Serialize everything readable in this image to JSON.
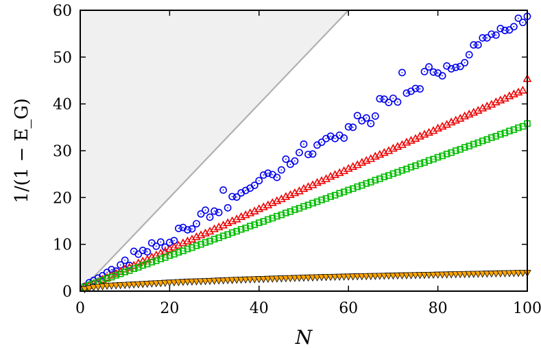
{
  "chart_data": {
    "type": "scatter",
    "xlabel": "N",
    "ylabel": "1/(1 − E_G)",
    "xlim": [
      0,
      100
    ],
    "ylim": [
      0,
      60
    ],
    "xticks": [
      "0",
      "20",
      "40",
      "60",
      "80",
      "100"
    ],
    "yticks": [
      "0",
      "10",
      "20",
      "30",
      "40",
      "50",
      "60"
    ],
    "grid": false,
    "shaded_region": {
      "boundary": "y = x",
      "fill": "#f0f0f0",
      "line_color": "#b0b0b0"
    },
    "series": [
      {
        "marker": "circle-dot",
        "color": "#0000ee",
        "x": [
          1,
          2,
          3,
          4,
          5,
          6,
          7,
          8,
          9,
          10,
          11,
          12,
          13,
          14,
          15,
          16,
          17,
          18,
          19,
          20,
          21,
          22,
          23,
          24,
          25,
          26,
          27,
          28,
          29,
          30,
          31,
          32,
          33,
          34,
          35,
          36,
          37,
          38,
          39,
          40,
          41,
          42,
          43,
          44,
          45,
          46,
          47,
          48,
          49,
          50,
          51,
          52,
          53,
          54,
          55,
          56,
          57,
          58,
          59,
          60,
          61,
          62,
          63,
          64,
          65,
          66,
          67,
          68,
          69,
          70,
          71,
          72,
          73,
          74,
          75,
          76,
          77,
          78,
          79,
          80,
          81,
          82,
          83,
          84,
          85,
          86,
          87,
          88,
          89,
          90,
          91,
          92,
          93,
          94,
          95,
          96,
          97,
          98,
          99,
          100
        ],
        "y": [
          1.0,
          1.8,
          2.3,
          2.8,
          3.3,
          4.0,
          4.6,
          4.3,
          5.6,
          6.6,
          5.5,
          8.5,
          7.9,
          8.7,
          8.4,
          10.3,
          9.6,
          10.5,
          9.4,
          10.4,
          10.8,
          13.4,
          13.6,
          13.1,
          13.3,
          14.4,
          16.5,
          17.3,
          15.8,
          17.1,
          16.8,
          21.6,
          17.8,
          20.2,
          20.1,
          21.0,
          21.5,
          22.0,
          22.6,
          23.6,
          24.8,
          25.2,
          24.9,
          24.3,
          25.9,
          28.2,
          27.1,
          27.8,
          29.6,
          31.4,
          29.2,
          29.3,
          31.2,
          31.8,
          32.6,
          33.1,
          32.6,
          33.3,
          32.7,
          35.1,
          35.0,
          37.5,
          36.4,
          37.0,
          35.8,
          37.4,
          41.1,
          41.0,
          40.3,
          41.2,
          40.4,
          46.7,
          42.3,
          42.7,
          43.3,
          43.2,
          46.9,
          47.9,
          46.8,
          46.6,
          46.0,
          48.1,
          47.5,
          47.8,
          48.0,
          48.8,
          50.5,
          52.6,
          52.6,
          54.1,
          54.1,
          54.9,
          54.7,
          56.1,
          55.7,
          55.8,
          56.5,
          58.3,
          57.4,
          58.7
        ]
      },
      {
        "marker": "triangle-up",
        "color": "#ee0000",
        "x": [
          1,
          2,
          3,
          4,
          5,
          6,
          7,
          8,
          9,
          10,
          11,
          12,
          13,
          14,
          15,
          16,
          17,
          18,
          19,
          20,
          21,
          22,
          23,
          24,
          25,
          26,
          27,
          28,
          29,
          30,
          31,
          32,
          33,
          34,
          35,
          36,
          37,
          38,
          39,
          40,
          41,
          42,
          43,
          44,
          45,
          46,
          47,
          48,
          49,
          50,
          51,
          52,
          53,
          54,
          55,
          56,
          57,
          58,
          59,
          60,
          61,
          62,
          63,
          64,
          65,
          66,
          67,
          68,
          69,
          70,
          71,
          72,
          73,
          74,
          75,
          76,
          77,
          78,
          79,
          80,
          81,
          82,
          83,
          84,
          85,
          86,
          87,
          88,
          89,
          90,
          91,
          92,
          93,
          94,
          95,
          96,
          97,
          98,
          99,
          100
        ],
        "y": [
          0.9,
          1.2,
          1.6,
          2.0,
          2.5,
          2.9,
          3.4,
          3.8,
          4.2,
          4.7,
          5.1,
          5.5,
          6.0,
          6.4,
          6.8,
          7.3,
          7.7,
          8.1,
          8.5,
          9.0,
          9.4,
          9.8,
          10.3,
          10.7,
          11.1,
          11.6,
          12.0,
          12.4,
          12.8,
          13.3,
          13.7,
          14.1,
          14.6,
          15.0,
          15.4,
          15.9,
          16.3,
          16.7,
          17.1,
          17.6,
          18.0,
          18.4,
          18.9,
          19.3,
          19.7,
          20.2,
          20.6,
          21.0,
          21.4,
          21.9,
          22.3,
          22.7,
          23.2,
          23.6,
          24.0,
          24.5,
          24.9,
          25.3,
          25.7,
          26.2,
          26.6,
          27.0,
          27.5,
          27.9,
          28.3,
          28.8,
          29.2,
          29.6,
          30.0,
          30.5,
          30.9,
          31.3,
          31.8,
          32.2,
          32.6,
          33.1,
          33.5,
          33.9,
          34.3,
          34.8,
          35.2,
          35.6,
          36.1,
          36.5,
          36.9,
          37.4,
          37.8,
          38.2,
          38.6,
          39.1,
          39.5,
          39.9,
          40.4,
          40.8,
          41.2,
          41.7,
          42.1,
          42.5,
          42.9,
          45.4
        ]
      },
      {
        "marker": "square-dot",
        "color": "#00bb00",
        "x": [
          1,
          2,
          3,
          4,
          5,
          6,
          7,
          8,
          9,
          10,
          11,
          12,
          13,
          14,
          15,
          16,
          17,
          18,
          19,
          20,
          21,
          22,
          23,
          24,
          25,
          26,
          27,
          28,
          29,
          30,
          31,
          32,
          33,
          34,
          35,
          36,
          37,
          38,
          39,
          40,
          41,
          42,
          43,
          44,
          45,
          46,
          47,
          48,
          49,
          50,
          51,
          52,
          53,
          54,
          55,
          56,
          57,
          58,
          59,
          60,
          61,
          62,
          63,
          64,
          65,
          66,
          67,
          68,
          69,
          70,
          71,
          72,
          73,
          74,
          75,
          76,
          77,
          78,
          79,
          80,
          81,
          82,
          83,
          84,
          85,
          86,
          87,
          88,
          89,
          90,
          91,
          92,
          93,
          94,
          95,
          96,
          97,
          98,
          99,
          100
        ],
        "y": [
          0.9,
          1.3,
          1.6,
          2.0,
          2.3,
          2.7,
          3.0,
          3.4,
          3.7,
          4.1,
          4.4,
          4.8,
          5.1,
          5.5,
          5.8,
          6.2,
          6.5,
          6.9,
          7.2,
          7.6,
          7.9,
          8.3,
          8.6,
          9.0,
          9.3,
          9.7,
          10.0,
          10.4,
          10.7,
          11.1,
          11.4,
          11.8,
          12.1,
          12.5,
          12.8,
          13.2,
          13.5,
          13.9,
          14.2,
          14.6,
          14.9,
          15.3,
          15.6,
          16.0,
          16.3,
          16.7,
          17.0,
          17.4,
          17.7,
          18.1,
          18.4,
          18.8,
          19.1,
          19.5,
          19.8,
          20.2,
          20.5,
          20.9,
          21.2,
          21.6,
          21.9,
          22.3,
          22.6,
          23.0,
          23.3,
          23.7,
          24.0,
          24.4,
          24.7,
          25.1,
          25.4,
          25.8,
          26.1,
          26.5,
          26.8,
          27.2,
          27.5,
          27.9,
          28.2,
          28.6,
          28.9,
          29.3,
          29.6,
          30.0,
          30.3,
          30.7,
          31.0,
          31.4,
          31.7,
          32.1,
          32.4,
          32.8,
          33.1,
          33.5,
          33.8,
          34.2,
          34.5,
          34.9,
          35.2,
          35.8
        ]
      },
      {
        "marker": "triangle-down",
        "color": "#ffa500",
        "x": [
          1,
          2,
          3,
          4,
          5,
          6,
          7,
          8,
          9,
          10,
          11,
          12,
          13,
          14,
          15,
          16,
          17,
          18,
          19,
          20,
          21,
          22,
          23,
          24,
          25,
          26,
          27,
          28,
          29,
          30,
          31,
          32,
          33,
          34,
          35,
          36,
          37,
          38,
          39,
          40,
          41,
          42,
          43,
          44,
          45,
          46,
          47,
          48,
          49,
          50,
          51,
          52,
          53,
          54,
          55,
          56,
          57,
          58,
          59,
          60,
          61,
          62,
          63,
          64,
          65,
          66,
          67,
          68,
          69,
          70,
          71,
          72,
          73,
          74,
          75,
          76,
          77,
          78,
          79,
          80,
          81,
          82,
          83,
          84,
          85,
          86,
          87,
          88,
          89,
          90,
          91,
          92,
          93,
          94,
          95,
          96,
          97,
          98,
          99,
          100
        ],
        "y": [
          0.4,
          0.6,
          0.8,
          0.9,
          1.0,
          1.1,
          1.15,
          1.2,
          1.25,
          1.3,
          1.35,
          1.4,
          1.45,
          1.5,
          1.55,
          1.6,
          1.65,
          1.7,
          1.75,
          1.8,
          1.85,
          1.9,
          1.95,
          2.0,
          2.03,
          2.06,
          2.09,
          2.12,
          2.15,
          2.2,
          2.24,
          2.28,
          2.32,
          2.36,
          2.4,
          2.43,
          2.46,
          2.49,
          2.52,
          2.55,
          2.58,
          2.61,
          2.64,
          2.67,
          2.7,
          2.73,
          2.76,
          2.79,
          2.82,
          2.85,
          2.88,
          2.91,
          2.94,
          2.97,
          3.0,
          3.02,
          3.04,
          3.06,
          3.08,
          3.1,
          3.12,
          3.14,
          3.16,
          3.18,
          3.2,
          3.22,
          3.24,
          3.26,
          3.28,
          3.3,
          3.32,
          3.34,
          3.36,
          3.38,
          3.4,
          3.42,
          3.44,
          3.46,
          3.48,
          3.5,
          3.52,
          3.54,
          3.56,
          3.58,
          3.6,
          3.62,
          3.64,
          3.66,
          3.68,
          3.7,
          3.72,
          3.74,
          3.76,
          3.78,
          3.8,
          3.82,
          3.84,
          3.86,
          3.88,
          3.9
        ]
      }
    ]
  }
}
